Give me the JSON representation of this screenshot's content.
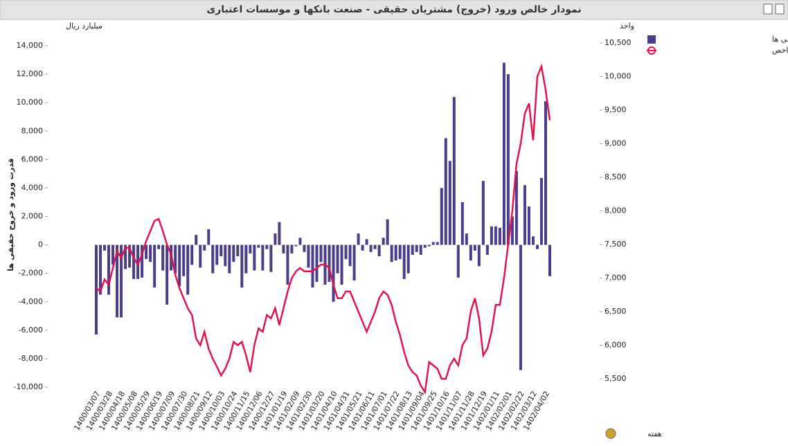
{
  "chart_data": {
    "type": "bar-line",
    "title": "نمودار خالص ورود (خروج) مشتریان حقیقی - صنعت بانکها و موسسات اعتباری",
    "y_unit": "میلیارد ریال",
    "y2_unit": "واحد",
    "y_label": "قدرت ورود و خروج حقیقی ها",
    "x_label": "هفته",
    "categories": [
      "1400/03/07",
      null,
      null,
      "1400/03/28",
      null,
      null,
      "1400/04/18",
      null,
      null,
      "1400/05/08",
      null,
      null,
      "1400/05/29",
      null,
      null,
      "1400/06/19",
      null,
      null,
      "1400/07/09",
      null,
      null,
      "1400/07/30",
      null,
      null,
      "1400/08/21",
      null,
      null,
      "1400/09/12",
      null,
      null,
      "1400/10/03",
      null,
      null,
      "1400/10/24",
      null,
      null,
      "1400/11/15",
      null,
      null,
      "1400/12/06",
      null,
      null,
      "1400/12/27",
      null,
      null,
      "1401/01/19",
      null,
      null,
      "1401/02/09",
      null,
      null,
      "1401/02/30",
      null,
      null,
      "1401/03/20",
      null,
      null,
      "1401/04/10",
      null,
      null,
      "1401/04/31",
      null,
      null,
      "1401/05/21",
      null,
      null,
      "1401/06/11",
      null,
      null,
      "1401/07/01",
      null,
      null,
      "1401/07/22",
      null,
      null,
      "1401/08/13",
      null,
      null,
      "1401/09/04",
      null,
      null,
      "1401/09/25",
      null,
      null,
      "1401/10/16",
      null,
      null,
      "1401/11/07",
      null,
      null,
      "1401/11/28",
      null,
      null,
      "1401/12/19",
      null,
      null,
      "1402/01/11",
      null,
      null,
      "1402/02/01",
      null,
      null,
      "1402/02/22",
      null,
      null,
      "1402/03/12",
      null,
      null,
      "1402/04/02",
      null
    ],
    "series": [
      {
        "name": "قدرت ورود و خروج حقیقی ها",
        "kind": "bar",
        "color": "#4b3c8e",
        "values": [
          -6300,
          -3500,
          -400,
          -3500,
          -1400,
          -5100,
          -5100,
          -1700,
          -1600,
          -2400,
          -2400,
          -2300,
          -1000,
          -1200,
          -3000,
          -300,
          -1800,
          -4200,
          -1800,
          -2000,
          -2900,
          -2200,
          -3500,
          -1400,
          700,
          -1600,
          -400,
          1100,
          -2000,
          -1400,
          -800,
          -1500,
          -2000,
          -1200,
          -800,
          -3000,
          -2000,
          -600,
          -1800,
          -200,
          -1800,
          -300,
          -1900,
          800,
          1600,
          -600,
          -2800,
          -600,
          -100,
          500,
          -500,
          -1600,
          -3000,
          -2600,
          -1200,
          -2800,
          -2600,
          -4000,
          -2000,
          -2800,
          -1000,
          -1500,
          -2500,
          800,
          -400,
          400,
          -500,
          -300,
          -800,
          500,
          1800,
          -1200,
          -1100,
          -1000,
          -2400,
          -2000,
          -700,
          -500,
          -700,
          -200,
          -100,
          200,
          200,
          4000,
          7500,
          5900,
          10400,
          -2300,
          3000,
          800,
          -1100,
          -400,
          -1500,
          4500,
          -700,
          1300,
          1300,
          1200,
          12800,
          12000,
          2000,
          5200,
          -8800,
          4200,
          2700,
          600,
          -300,
          4700,
          10100,
          -2200
        ]
      },
      {
        "name": "شاخص",
        "kind": "line",
        "axis": "y2",
        "color": "#e0144c",
        "values": [
          6850,
          6800,
          6980,
          6900,
          7150,
          7400,
          7300,
          7450,
          7450,
          7300,
          7200,
          7350,
          7550,
          7700,
          7850,
          7880,
          7700,
          7500,
          7350,
          7050,
          6850,
          6700,
          6550,
          6450,
          6100,
          6000,
          6200,
          5950,
          5800,
          5680,
          5550,
          5650,
          5800,
          6050,
          6000,
          6050,
          5850,
          5600,
          6000,
          6250,
          6200,
          6450,
          6400,
          6550,
          6300,
          6550,
          6800,
          7000,
          7100,
          7150,
          7100,
          7100,
          7100,
          7150,
          7200,
          7200,
          7150,
          6900,
          6700,
          6700,
          6800,
          6800,
          6650,
          6500,
          6350,
          6200,
          6350,
          6500,
          6700,
          6800,
          6750,
          6600,
          6350,
          6150,
          5900,
          5700,
          5600,
          5550,
          5400,
          5300,
          5750,
          5700,
          5650,
          5500,
          5500,
          5700,
          5800,
          5700,
          6000,
          6100,
          6500,
          6700,
          6400,
          5850,
          5950,
          6200,
          6600,
          6600,
          7000,
          7500,
          8000,
          8700,
          9000,
          9450,
          9600,
          9050,
          10000,
          10150,
          9800,
          9350
        ]
      }
    ],
    "ylim": [
      -10000,
      14000
    ],
    "yticks": [
      {
        "value": -10000,
        "label": "-10,000"
      },
      {
        "value": -8000,
        "label": "-8,000"
      },
      {
        "value": -6000,
        "label": "-6,000"
      },
      {
        "value": -4000,
        "label": "-4,000"
      },
      {
        "value": -2000,
        "label": "-2,000"
      },
      0,
      {
        "value": 2000,
        "label": "2,000"
      },
      {
        "value": 4000,
        "label": "4,000"
      },
      {
        "value": 6000,
        "label": "6,000"
      },
      {
        "value": 8000,
        "label": "8,000"
      },
      {
        "value": 10000,
        "label": "10,000"
      },
      {
        "value": 12000,
        "label": "12,000"
      },
      {
        "value": 14000,
        "label": "14,000"
      }
    ],
    "y2lim": [
      5500,
      10500
    ],
    "y2ticks": [
      {
        "value": 5500,
        "label": "5,500"
      },
      {
        "value": 6000,
        "label": "6,000"
      },
      {
        "value": 6500,
        "label": "6,500"
      },
      {
        "value": 7000,
        "label": "7,000"
      },
      {
        "value": 7500,
        "label": "7,500"
      },
      {
        "value": 8000,
        "label": "8,000"
      },
      {
        "value": 8500,
        "label": "8,500"
      },
      {
        "value": 9000,
        "label": "9,000"
      },
      {
        "value": 9500,
        "label": "9,500"
      },
      {
        "value": 10000,
        "label": "10,000"
      },
      {
        "value": 10500,
        "label": "10,500"
      }
    ],
    "legend": "top-right"
  }
}
